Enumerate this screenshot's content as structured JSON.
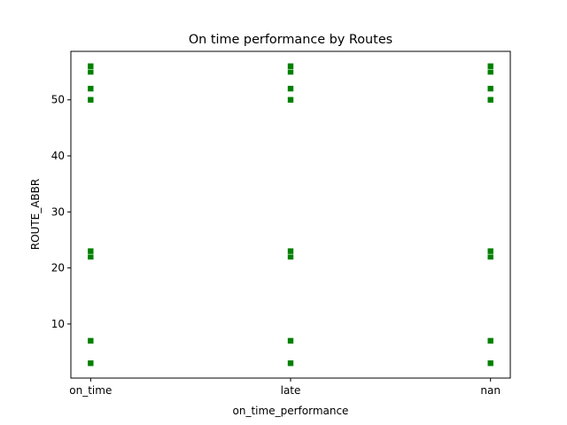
{
  "chart_data": {
    "type": "scatter",
    "title": "On time performance by Routes",
    "xlabel": "on_time_performance",
    "ylabel": "ROUTE_ABBR",
    "categories": [
      "on_time",
      "late",
      "nan"
    ],
    "ylim": [
      0.35,
      58.65
    ],
    "yticks": [
      10,
      20,
      30,
      40,
      50
    ],
    "grid": false,
    "legend": "none",
    "marker": "square",
    "color": "#008000",
    "series": [
      {
        "points": [
          {
            "x": "on_time",
            "y": 3
          },
          {
            "x": "on_time",
            "y": 7
          },
          {
            "x": "on_time",
            "y": 22
          },
          {
            "x": "on_time",
            "y": 23
          },
          {
            "x": "on_time",
            "y": 50
          },
          {
            "x": "on_time",
            "y": 52
          },
          {
            "x": "on_time",
            "y": 55
          },
          {
            "x": "on_time",
            "y": 56
          },
          {
            "x": "late",
            "y": 3
          },
          {
            "x": "late",
            "y": 7
          },
          {
            "x": "late",
            "y": 22
          },
          {
            "x": "late",
            "y": 23
          },
          {
            "x": "late",
            "y": 50
          },
          {
            "x": "late",
            "y": 52
          },
          {
            "x": "late",
            "y": 55
          },
          {
            "x": "late",
            "y": 56
          },
          {
            "x": "nan",
            "y": 3
          },
          {
            "x": "nan",
            "y": 7
          },
          {
            "x": "nan",
            "y": 22
          },
          {
            "x": "nan",
            "y": 23
          },
          {
            "x": "nan",
            "y": 50
          },
          {
            "x": "nan",
            "y": 52
          },
          {
            "x": "nan",
            "y": 55
          },
          {
            "x": "nan",
            "y": 56
          }
        ]
      }
    ]
  }
}
